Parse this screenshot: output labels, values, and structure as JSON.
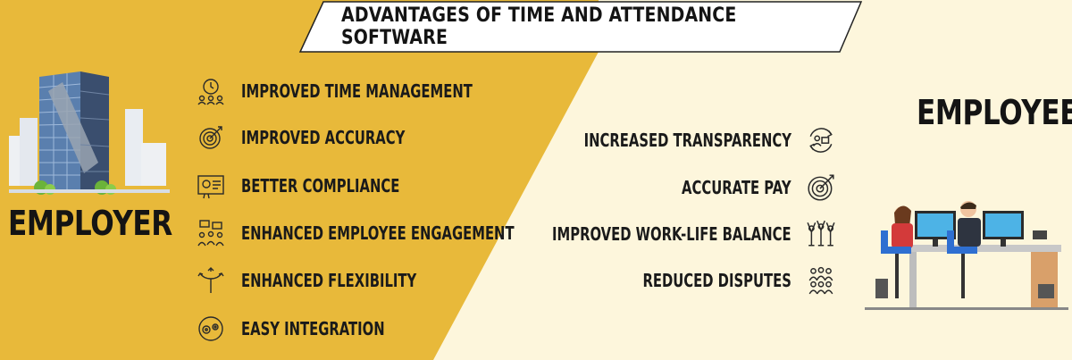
{
  "title": "ADVANTAGES OF TIME AND ATTENDANCE SOFTWARE",
  "employer": {
    "label": "EMPLOYER",
    "items": [
      {
        "label": "IMPROVED TIME MANAGEMENT",
        "icon": "team-clock-icon"
      },
      {
        "label": "IMPROVED ACCURACY",
        "icon": "target-icon"
      },
      {
        "label": "BETTER COMPLIANCE",
        "icon": "certificate-icon"
      },
      {
        "label": "ENHANCED EMPLOYEE ENGAGEMENT",
        "icon": "group-chat-icon"
      },
      {
        "label": "ENHANCED FLEXIBILITY",
        "icon": "split-arrows-icon"
      },
      {
        "label": "EASY INTEGRATION",
        "icon": "gears-icon"
      }
    ]
  },
  "employee": {
    "label": "EMPLOYEE",
    "items": [
      {
        "label": "INCREASED TRANSPARENCY",
        "icon": "person-cycle-icon"
      },
      {
        "label": "ACCURATE PAY",
        "icon": "target-icon"
      },
      {
        "label": "IMPROVED WORK-LIFE BALANCE",
        "icon": "cheering-people-icon"
      },
      {
        "label": "REDUCED DISPUTES",
        "icon": "people-group-icon"
      }
    ]
  },
  "colors": {
    "left_panel": "#e8b93a",
    "right_panel": "#fdf6dc",
    "text": "#141414"
  }
}
